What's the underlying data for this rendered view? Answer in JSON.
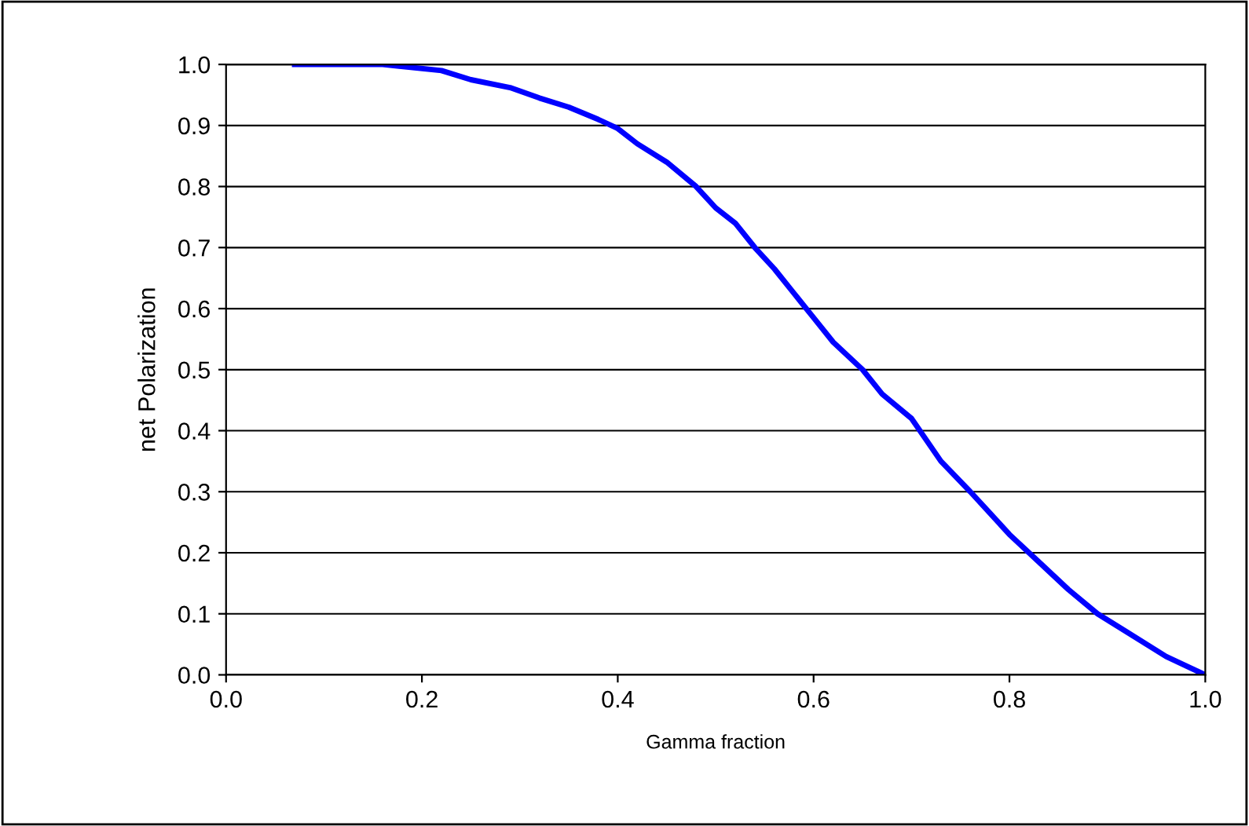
{
  "chart_data": {
    "type": "line",
    "xlabel": "Gamma fraction",
    "ylabel": "net Polarization",
    "xlim": [
      0.0,
      1.0
    ],
    "xticks": [
      {
        "value": 0,
        "label": "0.0"
      },
      {
        "value": 0.2,
        "label": "0.2"
      },
      {
        "value": 0.4,
        "label": "0.4"
      },
      {
        "value": 0.6,
        "label": "0.6"
      },
      {
        "value": 0.8,
        "label": "0.8"
      },
      {
        "value": 1,
        "label": "1.0"
      }
    ],
    "ylim": [
      0.0,
      1.0
    ],
    "yticks": [
      {
        "value": 0,
        "label": "0.0"
      },
      {
        "value": 0.1,
        "label": "0.1"
      },
      {
        "value": 0.2,
        "label": "0.2"
      },
      {
        "value": 0.3,
        "label": "0.3"
      },
      {
        "value": 0.4,
        "label": "0.4"
      },
      {
        "value": 0.5,
        "label": "0.5"
      },
      {
        "value": 0.6,
        "label": "0.6"
      },
      {
        "value": 0.7,
        "label": "0.7"
      },
      {
        "value": 0.8,
        "label": "0.8"
      },
      {
        "value": 0.9,
        "label": "0.9"
      },
      {
        "value": 1,
        "label": "1.0"
      }
    ],
    "grid": "y",
    "marker": "none",
    "line_style": "solid",
    "x": [
      0.07,
      0.16,
      0.22,
      0.25,
      0.29,
      0.32,
      0.35,
      0.38,
      0.4,
      0.42,
      0.45,
      0.48,
      0.5,
      0.52,
      0.54,
      0.56,
      0.58,
      0.6,
      0.62,
      0.65,
      0.67,
      0.7,
      0.73,
      0.76,
      0.78,
      0.8,
      0.83,
      0.86,
      0.89,
      0.92,
      0.96,
      1.0
    ],
    "series": [
      {
        "color": "#0000ff",
        "values": [
          1.0,
          1.0,
          0.99,
          0.975,
          0.962,
          0.945,
          0.93,
          0.91,
          0.895,
          0.87,
          0.84,
          0.8,
          0.765,
          0.74,
          0.7,
          0.665,
          0.625,
          0.585,
          0.545,
          0.5,
          0.46,
          0.42,
          0.35,
          0.3,
          0.265,
          0.23,
          0.185,
          0.14,
          0.1,
          0.07,
          0.03,
          0.0
        ]
      }
    ]
  }
}
